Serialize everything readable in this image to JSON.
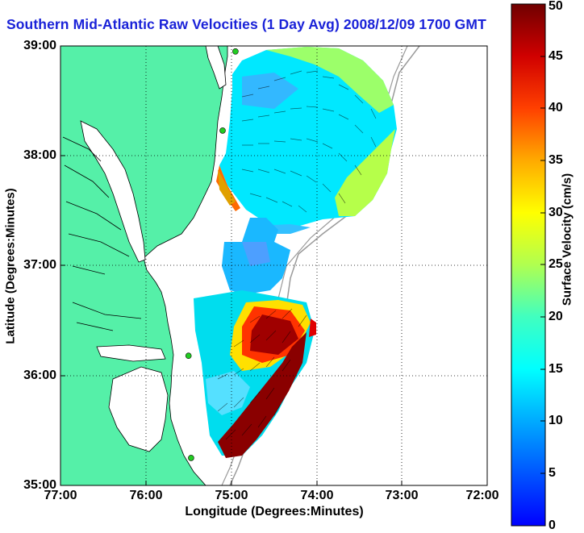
{
  "title": "Southern Mid-Atlantic Raw Velocities (1 Day Avg) 2008/12/09 1700 GMT",
  "xlabel": "Longitude (Degrees:Minutes)",
  "ylabel": "Latitude (Degrees:Minutes)",
  "colorbar": {
    "label": "Surface Velocity (cm/s)",
    "ticks": [
      "0",
      "5",
      "10",
      "15",
      "20",
      "25",
      "30",
      "35",
      "40",
      "45",
      "50"
    ],
    "min": 0,
    "max": 50
  },
  "xticks": [
    "77:00",
    "76:00",
    "75:00",
    "74:00",
    "73:00",
    "72:00"
  ],
  "yticks": [
    "39:00",
    "38:00",
    "37:00",
    "36:00",
    "35:00"
  ],
  "colors": {
    "land": "#55f0a8",
    "coast_outline": "#000000",
    "bathymetry": "#9a9a9a",
    "grid": "#000000",
    "stations": "#22cc22",
    "title": "#1a22d8"
  },
  "map": {
    "lon_range": [
      -77,
      -72
    ],
    "lat_range": [
      35,
      39
    ],
    "stations": [
      {
        "lon": -74.95,
        "lat": 38.95
      },
      {
        "lon": -75.1,
        "lat": 38.23
      },
      {
        "lon": -75.5,
        "lat": 36.18
      },
      {
        "lon": -75.47,
        "lat": 35.25
      }
    ]
  }
}
